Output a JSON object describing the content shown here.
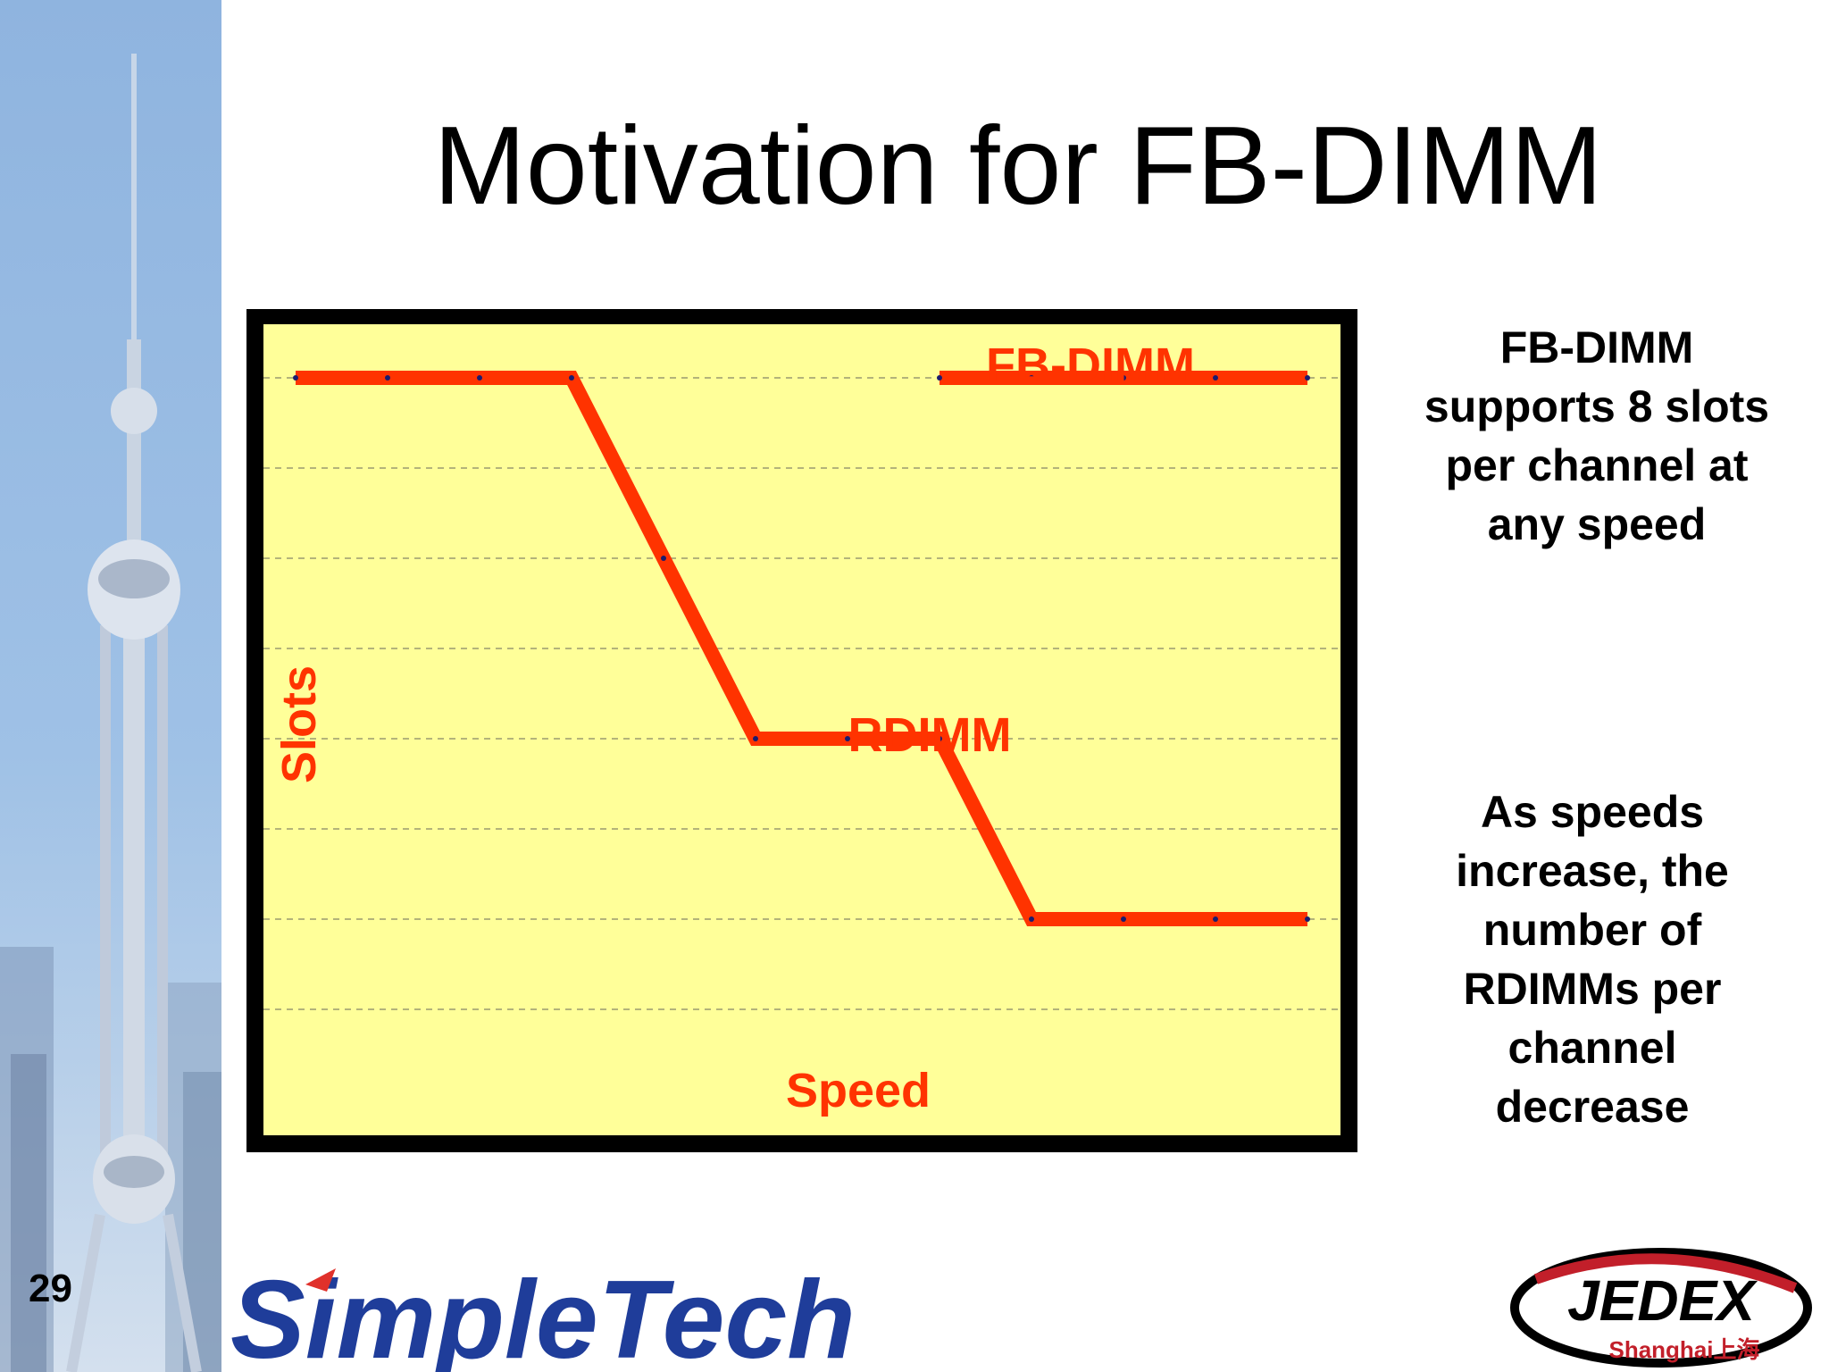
{
  "slide": {
    "number": "29",
    "title": "Motivation for FB-DIMM",
    "notes": [
      "FB-DIMM\nsupports 8 slots\nper channel at\nany speed",
      "As speeds\nincrease, the\nnumber of\nRDIMMs per\nchannel\ndecrease"
    ]
  },
  "logos": {
    "simpletech": "SimpleTech",
    "jedex": "JEDEX",
    "jedex_sub": "Shanghai上海"
  },
  "colors": {
    "plot_background": "#ffff99",
    "line": "#ff3300",
    "label": "#ff3300",
    "frame": "#000000"
  },
  "chart_data": {
    "type": "line",
    "title": "",
    "xlabel": "Speed",
    "ylabel": "Slots",
    "xlim": [
      0,
      11.5
    ],
    "ylim": [
      0,
      9
    ],
    "grid": true,
    "series": [
      {
        "name": "FB-DIMM",
        "x": [
          7,
          8,
          9,
          10,
          11
        ],
        "y": [
          8,
          8,
          8,
          8,
          8
        ]
      },
      {
        "name": "RDIMM",
        "x": [
          0,
          1,
          2,
          3,
          4,
          5,
          6,
          7,
          8,
          9,
          10,
          11
        ],
        "y": [
          8,
          8,
          8,
          8,
          6,
          4,
          4,
          4,
          2,
          2,
          2,
          2
        ]
      }
    ]
  }
}
